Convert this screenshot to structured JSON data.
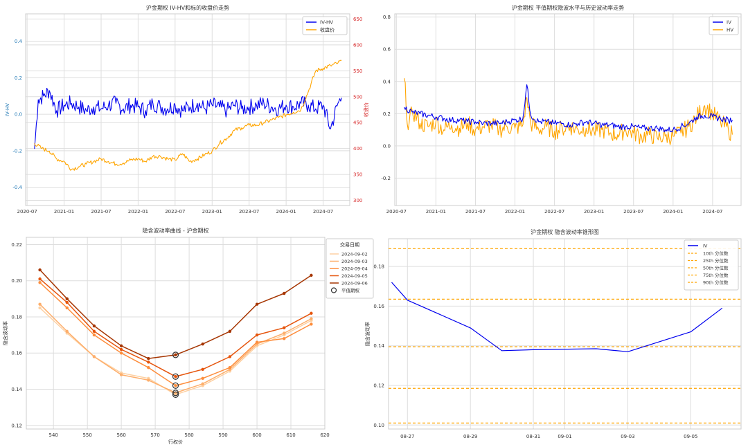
{
  "chart_data": [
    {
      "type": "line",
      "title": "沪金期权 IV-HV和标的收盘价走势",
      "ylabel": "IV-HV",
      "y2label": "收盘价",
      "ylim": [
        -0.5,
        0.55
      ],
      "y2lim": [
        290,
        660
      ],
      "xlim": [
        2020.48,
        2024.86
      ],
      "xticks": [
        "2020-07",
        "2021-01",
        "2021-07",
        "2022-01",
        "2022-07",
        "2023-01",
        "2023-07",
        "2024-01",
        "2024-07"
      ],
      "yticks": [
        "-0.4",
        "-0.2",
        "0.0",
        "0.2",
        "0.4"
      ],
      "y2ticks": [
        "300",
        "350",
        "400",
        "450",
        "500",
        "550",
        "600",
        "650"
      ],
      "legend_position": "top-right",
      "series": [
        {
          "name": "IV-HV",
          "axis": "left",
          "color": "#0000ee",
          "x": [
            2020.6,
            2020.65,
            2020.72,
            2020.8,
            2020.9,
            2021.0,
            2021.1,
            2021.2,
            2021.3,
            2021.4,
            2021.5,
            2021.6,
            2021.7,
            2021.8,
            2021.9,
            2022.0,
            2022.1,
            2022.2,
            2022.3,
            2022.4,
            2022.5,
            2022.6,
            2022.7,
            2022.8,
            2022.9,
            2023.0,
            2023.1,
            2023.2,
            2023.3,
            2023.4,
            2023.5,
            2023.6,
            2023.7,
            2023.8,
            2023.9,
            2024.0,
            2024.1,
            2024.2,
            2024.3,
            2024.4,
            2024.5,
            2024.6,
            2024.7,
            2024.75
          ],
          "y": [
            -0.19,
            0.08,
            0.1,
            0.13,
            0.02,
            0.05,
            0.06,
            0.04,
            0.02,
            0.04,
            0.03,
            0.05,
            0.06,
            0.03,
            0.05,
            0.04,
            0.02,
            0.06,
            0.04,
            0.03,
            0.05,
            0.02,
            0.04,
            0.06,
            0.03,
            0.05,
            0.04,
            0.02,
            0.05,
            0.03,
            0.04,
            0.05,
            0.06,
            0.04,
            0.03,
            0.05,
            0.04,
            0.06,
            0.05,
            0.03,
            0.05,
            -0.08,
            0.06,
            0.09
          ]
        },
        {
          "name": "收盘价",
          "axis": "right",
          "color": "#ffa500",
          "x": [
            2020.6,
            2020.7,
            2020.8,
            2020.9,
            2021.0,
            2021.1,
            2021.2,
            2021.3,
            2021.4,
            2021.5,
            2021.6,
            2021.7,
            2021.8,
            2021.9,
            2022.0,
            2022.1,
            2022.2,
            2022.3,
            2022.4,
            2022.5,
            2022.6,
            2022.7,
            2022.8,
            2022.9,
            2023.0,
            2023.1,
            2023.2,
            2023.3,
            2023.4,
            2023.5,
            2023.6,
            2023.7,
            2023.8,
            2023.9,
            2024.0,
            2024.1,
            2024.2,
            2024.3,
            2024.4,
            2024.5,
            2024.6,
            2024.7,
            2024.75
          ],
          "y": [
            410,
            400,
            395,
            380,
            375,
            360,
            365,
            370,
            375,
            380,
            375,
            370,
            372,
            378,
            380,
            375,
            385,
            385,
            380,
            378,
            390,
            375,
            380,
            388,
            395,
            410,
            420,
            435,
            440,
            445,
            445,
            450,
            455,
            460,
            465,
            470,
            475,
            510,
            550,
            555,
            560,
            565,
            570
          ]
        }
      ]
    },
    {
      "type": "line",
      "title": "沪金期权 平值期权隐波水平与历史波动率走势",
      "ylim": [
        -0.37,
        0.82
      ],
      "xlim": [
        2020.48,
        2024.86
      ],
      "xticks": [
        "2020-07",
        "2021-01",
        "2021-07",
        "2022-01",
        "2022-07",
        "2023-01",
        "2023-07",
        "2024-01",
        "2024-07"
      ],
      "yticks": [
        "-0.2",
        "0.0",
        "0.2",
        "0.4",
        "0.6",
        "0.8"
      ],
      "legend_position": "top-right",
      "series": [
        {
          "name": "IV",
          "color": "#0000ee",
          "x": [
            2020.6,
            2020.7,
            2020.8,
            2020.9,
            2021.0,
            2021.1,
            2021.2,
            2021.3,
            2021.4,
            2021.5,
            2021.6,
            2021.7,
            2021.8,
            2021.9,
            2022.0,
            2022.1,
            2022.15,
            2022.2,
            2022.3,
            2022.4,
            2022.5,
            2022.6,
            2022.7,
            2022.8,
            2022.9,
            2023.0,
            2023.1,
            2023.2,
            2023.3,
            2023.4,
            2023.5,
            2023.6,
            2023.7,
            2023.8,
            2023.9,
            2024.0,
            2024.1,
            2024.2,
            2024.3,
            2024.4,
            2024.5,
            2024.6,
            2024.7,
            2024.75
          ],
          "y": [
            0.24,
            0.21,
            0.2,
            0.19,
            0.18,
            0.17,
            0.16,
            0.16,
            0.15,
            0.15,
            0.14,
            0.14,
            0.14,
            0.15,
            0.16,
            0.17,
            0.38,
            0.19,
            0.15,
            0.15,
            0.14,
            0.14,
            0.13,
            0.14,
            0.15,
            0.14,
            0.13,
            0.13,
            0.12,
            0.12,
            0.12,
            0.11,
            0.11,
            0.11,
            0.1,
            0.1,
            0.12,
            0.14,
            0.18,
            0.19,
            0.18,
            0.17,
            0.16,
            0.16
          ]
        },
        {
          "name": "HV",
          "color": "#ffa500",
          "x": [
            2020.6,
            2020.65,
            2020.7,
            2020.8,
            2020.9,
            2021.0,
            2021.1,
            2021.2,
            2021.3,
            2021.4,
            2021.5,
            2021.6,
            2021.7,
            2021.8,
            2021.9,
            2022.0,
            2022.1,
            2022.15,
            2022.2,
            2022.3,
            2022.4,
            2022.5,
            2022.6,
            2022.7,
            2022.8,
            2022.9,
            2023.0,
            2023.1,
            2023.2,
            2023.3,
            2023.4,
            2023.5,
            2023.6,
            2023.7,
            2023.8,
            2023.9,
            2024.0,
            2024.1,
            2024.2,
            2024.3,
            2024.4,
            2024.5,
            2024.6,
            2024.7,
            2024.75
          ],
          "y": [
            0.42,
            0.1,
            0.22,
            0.14,
            0.12,
            0.15,
            0.1,
            0.13,
            0.11,
            0.14,
            0.1,
            0.12,
            0.13,
            0.1,
            0.12,
            0.11,
            0.13,
            0.3,
            0.14,
            0.1,
            0.12,
            0.09,
            0.11,
            0.12,
            0.1,
            0.11,
            0.09,
            0.1,
            0.08,
            0.07,
            0.1,
            0.08,
            0.06,
            0.07,
            0.05,
            0.06,
            0.06,
            0.08,
            0.12,
            0.18,
            0.25,
            0.2,
            0.15,
            0.1,
            0.07
          ]
        }
      ]
    },
    {
      "type": "line",
      "title": "隐含波动率曲线 - 沪金期权",
      "xlabel": "行权价",
      "ylabel": "隐含波动率",
      "xlim": [
        532,
        620
      ],
      "ylim": [
        0.118,
        0.224
      ],
      "xticks": [
        "540",
        "550",
        "560",
        "570",
        "580",
        "590",
        "600",
        "610",
        "620"
      ],
      "yticks": [
        "0.12",
        "0.14",
        "0.16",
        "0.18",
        "0.20",
        "0.22"
      ],
      "legend_title": "交易日期",
      "legend_position": "top-right",
      "atm_label": "平值期权",
      "x": [
        536,
        544,
        552,
        560,
        568,
        576,
        584,
        592,
        600,
        608,
        616
      ],
      "series": [
        {
          "name": "2024-09-02",
          "color": "#fdd0a2",
          "values": [
            0.185,
            0.171,
            0.158,
            0.149,
            0.146,
            0.137,
            0.142,
            0.15,
            0.164,
            0.17,
            0.178
          ]
        },
        {
          "name": "2024-09-03",
          "color": "#fdae6b",
          "values": [
            0.187,
            0.172,
            0.158,
            0.148,
            0.145,
            0.138,
            0.143,
            0.151,
            0.165,
            0.171,
            0.179
          ]
        },
        {
          "name": "2024-09-04",
          "color": "#fd8d3c",
          "values": [
            0.199,
            0.185,
            0.17,
            0.16,
            0.152,
            0.142,
            0.146,
            0.152,
            0.166,
            0.168,
            0.176
          ]
        },
        {
          "name": "2024-09-05",
          "color": "#e6550d",
          "values": [
            0.201,
            0.188,
            0.172,
            0.162,
            0.155,
            0.147,
            0.151,
            0.158,
            0.17,
            0.174,
            0.182
          ]
        },
        {
          "name": "2024-09-06",
          "color": "#a63603",
          "values": [
            0.206,
            0.19,
            0.175,
            0.164,
            0.157,
            0.159,
            0.165,
            0.172,
            0.187,
            0.193,
            0.203
          ]
        }
      ],
      "atm": {
        "x": 576,
        "values": [
          0.137,
          0.138,
          0.142,
          0.147,
          0.159
        ]
      }
    },
    {
      "type": "line",
      "title": "沪金期权 隐含波动率锥形图",
      "ylabel": "隐含波动率",
      "xlim": [
        -0.6,
        10.6
      ],
      "ylim": [
        0.098,
        0.194
      ],
      "xticks": [
        "08-27",
        "08-29",
        "08-31",
        "09-01",
        "09-03",
        "09-05"
      ],
      "xtick_values": [
        0,
        2,
        4,
        5,
        7,
        9
      ],
      "yticks": [
        "0.10",
        "0.12",
        "0.14",
        "0.16",
        "0.18"
      ],
      "legend_position": "top-right",
      "iv": {
        "name": "IV",
        "color": "#0000ee",
        "x": [
          -0.5,
          0,
          2,
          3,
          4,
          6,
          7,
          9,
          10
        ],
        "y": [
          0.172,
          0.163,
          0.149,
          0.1375,
          0.138,
          0.1385,
          0.137,
          0.147,
          0.159
        ]
      },
      "percentiles": [
        {
          "name": "10th 分位数",
          "value": 0.101
        },
        {
          "name": "25th 分位数",
          "value": 0.1185
        },
        {
          "name": "50th 分位数",
          "value": 0.1395
        },
        {
          "name": "75th 分位数",
          "value": 0.1635
        },
        {
          "name": "90th 分位数",
          "value": 0.189
        }
      ],
      "percentile_color": "#ffa500"
    }
  ]
}
